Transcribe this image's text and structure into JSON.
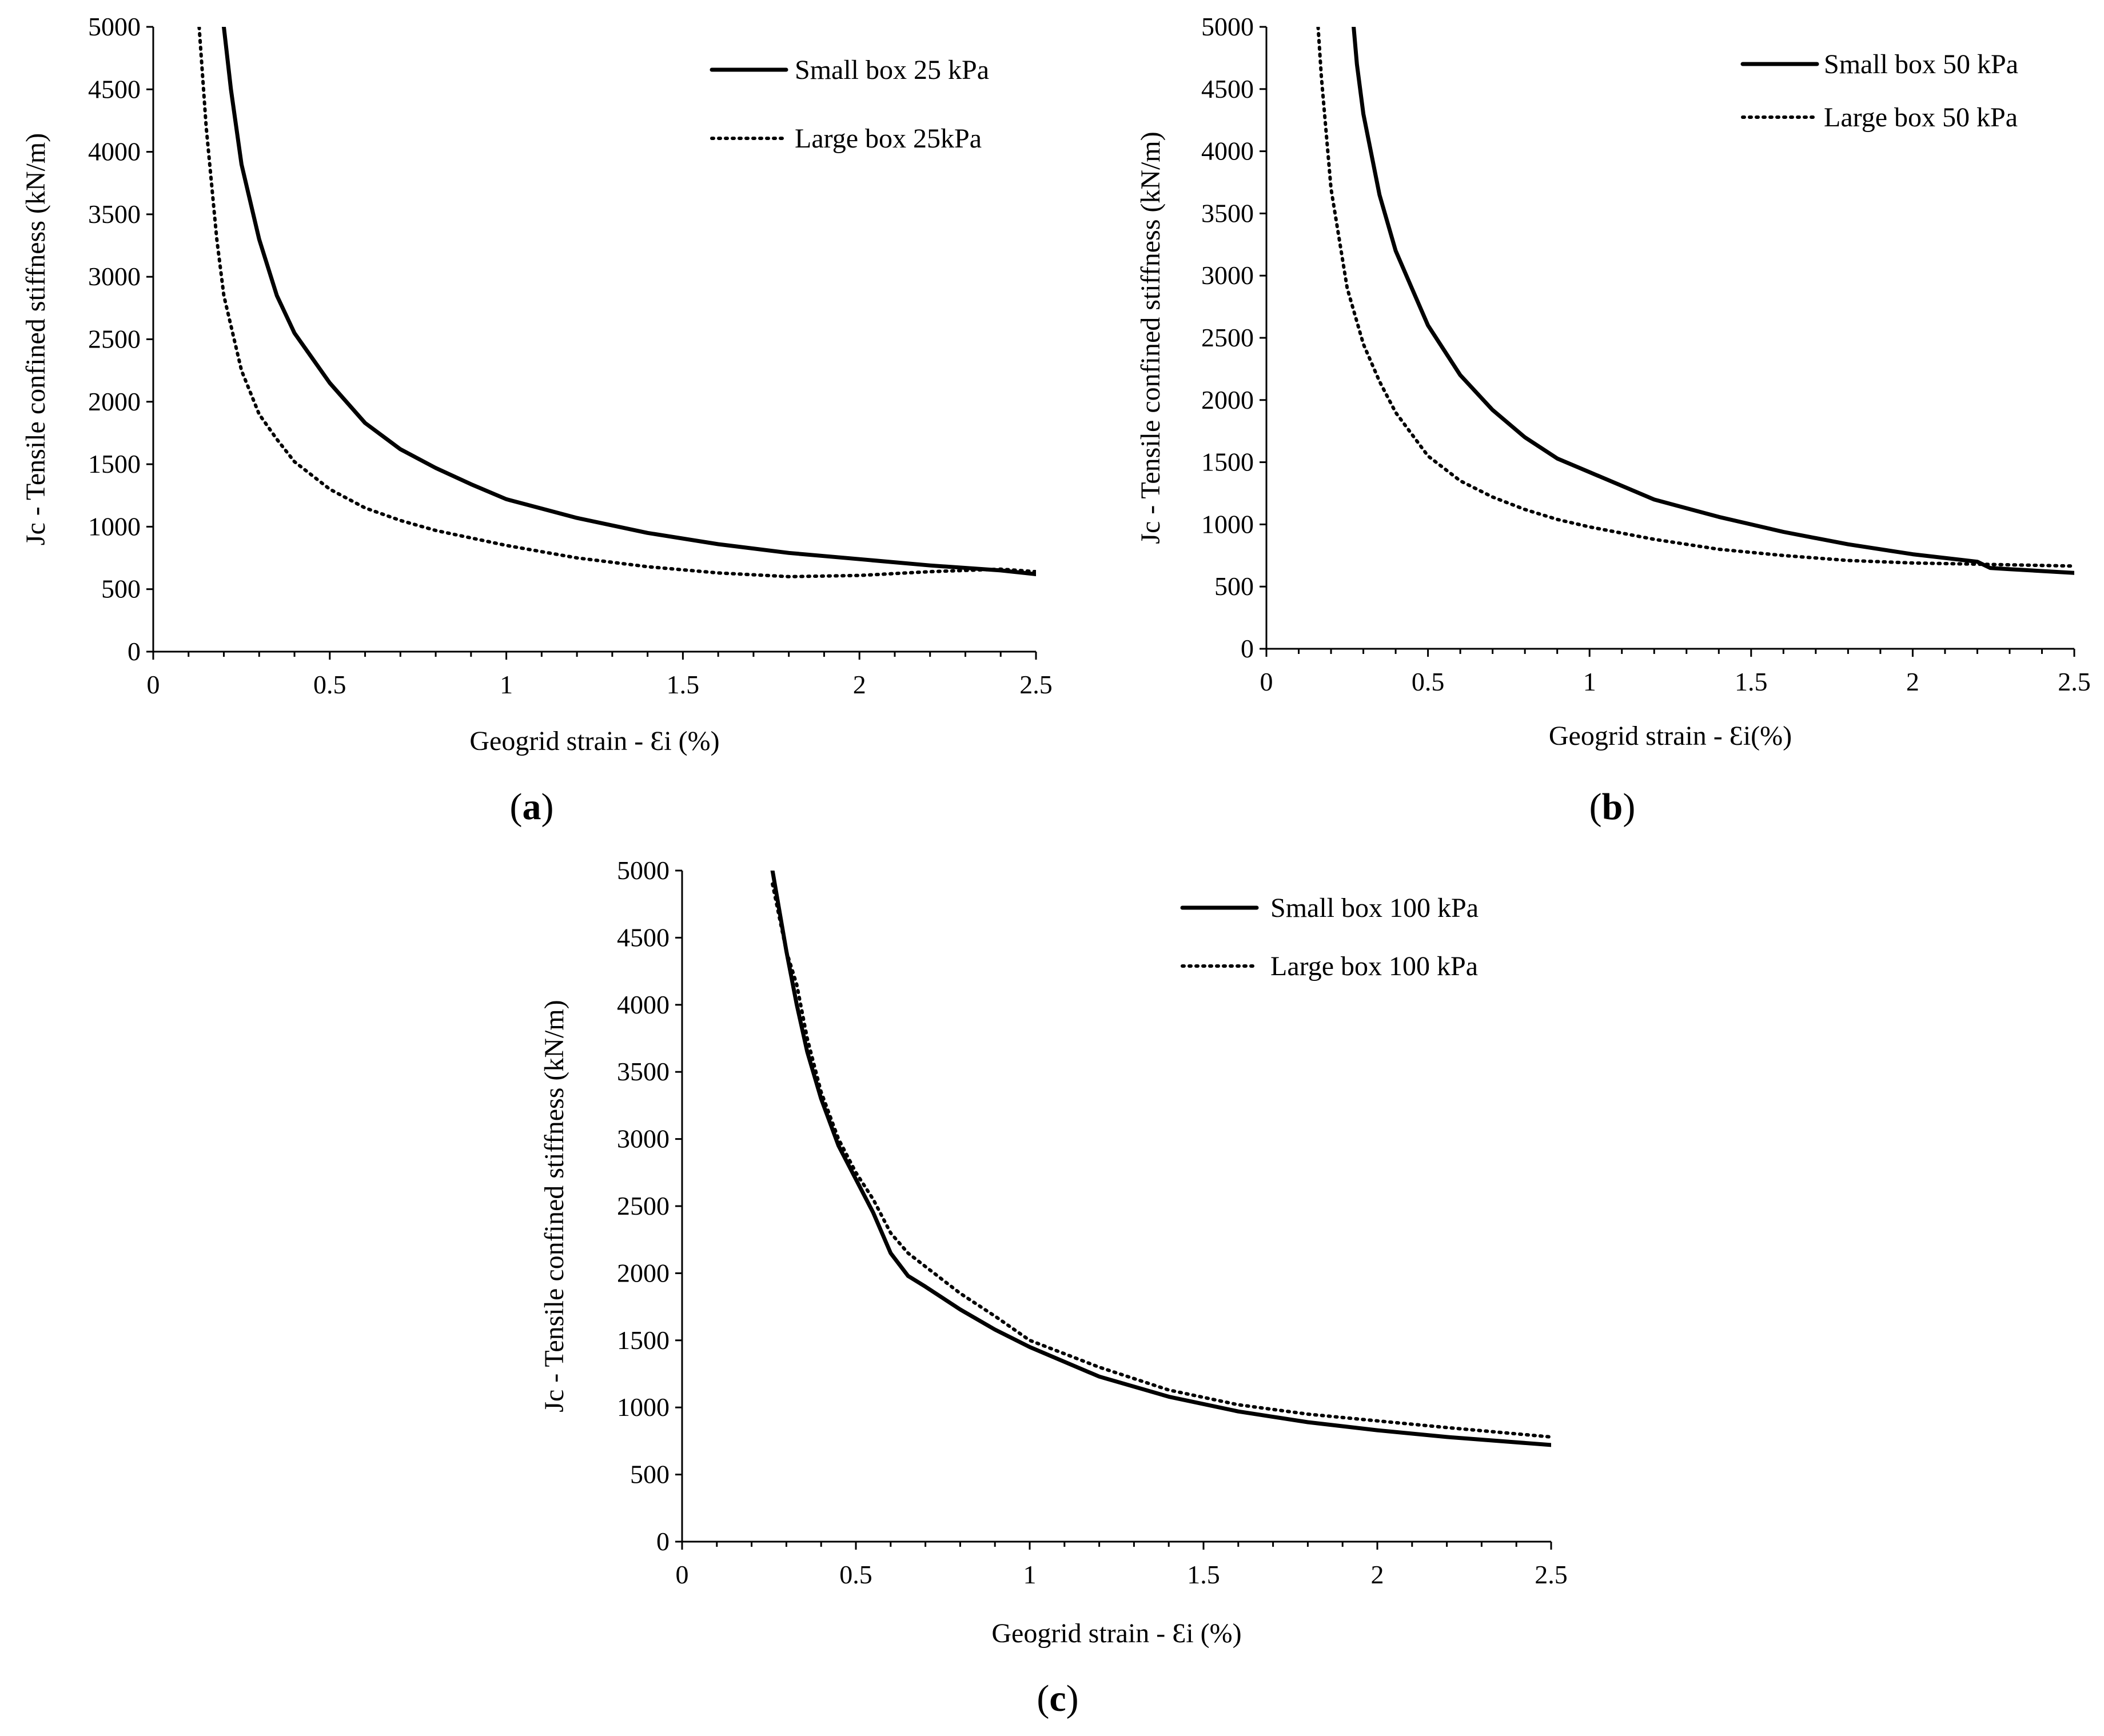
{
  "chart_data": [
    {
      "type": "line",
      "panel_label": "a",
      "title": "",
      "xlabel": "Geogrid strain - Ɛi (%)",
      "ylabel": "Jc - Tensile confined stiffness (kN/m)",
      "xlim": [
        0,
        2.5
      ],
      "ylim": [
        0,
        5000
      ],
      "xticks": [
        "0",
        "0.5",
        "1",
        "1.5",
        "2",
        "2.5"
      ],
      "yticks": [
        "0",
        "500",
        "1000",
        "1500",
        "2000",
        "2500",
        "3000",
        "3500",
        "4000",
        "4500",
        "5000"
      ],
      "grid": false,
      "legend_position": "top-right",
      "series": [
        {
          "name": "Small box 25 kPa",
          "style": "solid",
          "x": [
            0.2,
            0.22,
            0.25,
            0.3,
            0.35,
            0.4,
            0.45,
            0.5,
            0.6,
            0.7,
            0.8,
            0.9,
            1.0,
            1.2,
            1.4,
            1.6,
            1.8,
            2.0,
            2.2,
            2.4,
            2.5
          ],
          "y": [
            5000,
            4500,
            3900,
            3300,
            2850,
            2550,
            2350,
            2150,
            1830,
            1620,
            1470,
            1340,
            1220,
            1070,
            950,
            860,
            790,
            740,
            690,
            650,
            620
          ]
        },
        {
          "name": "Large box 25kPa",
          "style": "dotted",
          "x": [
            0.13,
            0.15,
            0.18,
            0.2,
            0.25,
            0.3,
            0.35,
            0.4,
            0.5,
            0.6,
            0.7,
            0.8,
            1.0,
            1.2,
            1.4,
            1.6,
            1.8,
            2.0,
            2.2,
            2.4,
            2.5
          ],
          "y": [
            5000,
            4200,
            3300,
            2850,
            2250,
            1900,
            1700,
            1520,
            1300,
            1150,
            1050,
            970,
            850,
            750,
            680,
            630,
            600,
            610,
            640,
            660,
            640
          ]
        }
      ]
    },
    {
      "type": "line",
      "panel_label": "b",
      "title": "",
      "xlabel": "Geogrid strain - Ɛi(%)",
      "ylabel": "Jc - Tensile confined stiffness (kN/m)",
      "xlim": [
        0,
        2.5
      ],
      "ylim": [
        0,
        5000
      ],
      "xticks": [
        "0",
        "0.5",
        "1",
        "1.5",
        "2",
        "2.5"
      ],
      "yticks": [
        "0",
        "500",
        "1000",
        "1500",
        "2000",
        "2500",
        "3000",
        "3500",
        "4000",
        "4500",
        "5000"
      ],
      "grid": false,
      "legend_position": "top-right",
      "series": [
        {
          "name": "Small box 50 kPa",
          "style": "solid",
          "x": [
            0.27,
            0.28,
            0.3,
            0.35,
            0.4,
            0.45,
            0.5,
            0.6,
            0.7,
            0.8,
            0.9,
            1.0,
            1.2,
            1.4,
            1.6,
            1.8,
            2.0,
            2.2,
            2.24,
            2.3,
            2.5
          ],
          "y": [
            5000,
            4700,
            4300,
            3650,
            3200,
            2900,
            2600,
            2200,
            1920,
            1700,
            1530,
            1420,
            1200,
            1060,
            940,
            840,
            760,
            700,
            650,
            640,
            610
          ]
        },
        {
          "name": "Large box 50 kPa",
          "style": "dotted",
          "x": [
            0.16,
            0.17,
            0.2,
            0.25,
            0.3,
            0.35,
            0.4,
            0.5,
            0.6,
            0.7,
            0.8,
            0.9,
            1.0,
            1.2,
            1.4,
            1.6,
            1.8,
            2.0,
            2.2,
            2.4,
            2.5
          ],
          "y": [
            5000,
            4600,
            3700,
            2900,
            2450,
            2150,
            1900,
            1550,
            1350,
            1220,
            1120,
            1040,
            980,
            880,
            800,
            750,
            710,
            690,
            680,
            670,
            665
          ]
        }
      ]
    },
    {
      "type": "line",
      "panel_label": "c",
      "title": "",
      "xlabel": "Geogrid strain - Ɛi (%)",
      "ylabel": "Jc - Tensile confined stiffness (kN/m)",
      "xlim": [
        0,
        2.5
      ],
      "ylim": [
        0,
        5000
      ],
      "xticks": [
        "0",
        "0.5",
        "1",
        "1.5",
        "2",
        "2.5"
      ],
      "yticks": [
        "0",
        "500",
        "1000",
        "1500",
        "2000",
        "2500",
        "3000",
        "3500",
        "4000",
        "4500",
        "5000"
      ],
      "grid": false,
      "legend_position": "top-right",
      "series": [
        {
          "name": "Small box 100 kPa",
          "style": "solid",
          "x": [
            0.26,
            0.28,
            0.3,
            0.33,
            0.36,
            0.4,
            0.45,
            0.5,
            0.55,
            0.6,
            0.65,
            0.7,
            0.8,
            0.9,
            1.0,
            1.2,
            1.4,
            1.6,
            1.8,
            2.0,
            2.2,
            2.5
          ],
          "y": [
            5000,
            4700,
            4400,
            4000,
            3650,
            3300,
            2950,
            2700,
            2450,
            2150,
            1980,
            1900,
            1730,
            1580,
            1450,
            1230,
            1080,
            970,
            890,
            830,
            780,
            720
          ]
        },
        {
          "name": "Large box 100 kPa",
          "style": "dotted",
          "x": [
            0.26,
            0.28,
            0.3,
            0.33,
            0.36,
            0.4,
            0.45,
            0.5,
            0.55,
            0.6,
            0.65,
            0.7,
            0.8,
            0.9,
            1.0,
            1.2,
            1.4,
            1.6,
            1.8,
            2.0,
            2.2,
            2.5
          ],
          "y": [
            4900,
            4650,
            4400,
            4150,
            3750,
            3350,
            3000,
            2750,
            2550,
            2300,
            2150,
            2050,
            1850,
            1680,
            1500,
            1300,
            1130,
            1020,
            950,
            900,
            850,
            780
          ]
        }
      ]
    }
  ]
}
